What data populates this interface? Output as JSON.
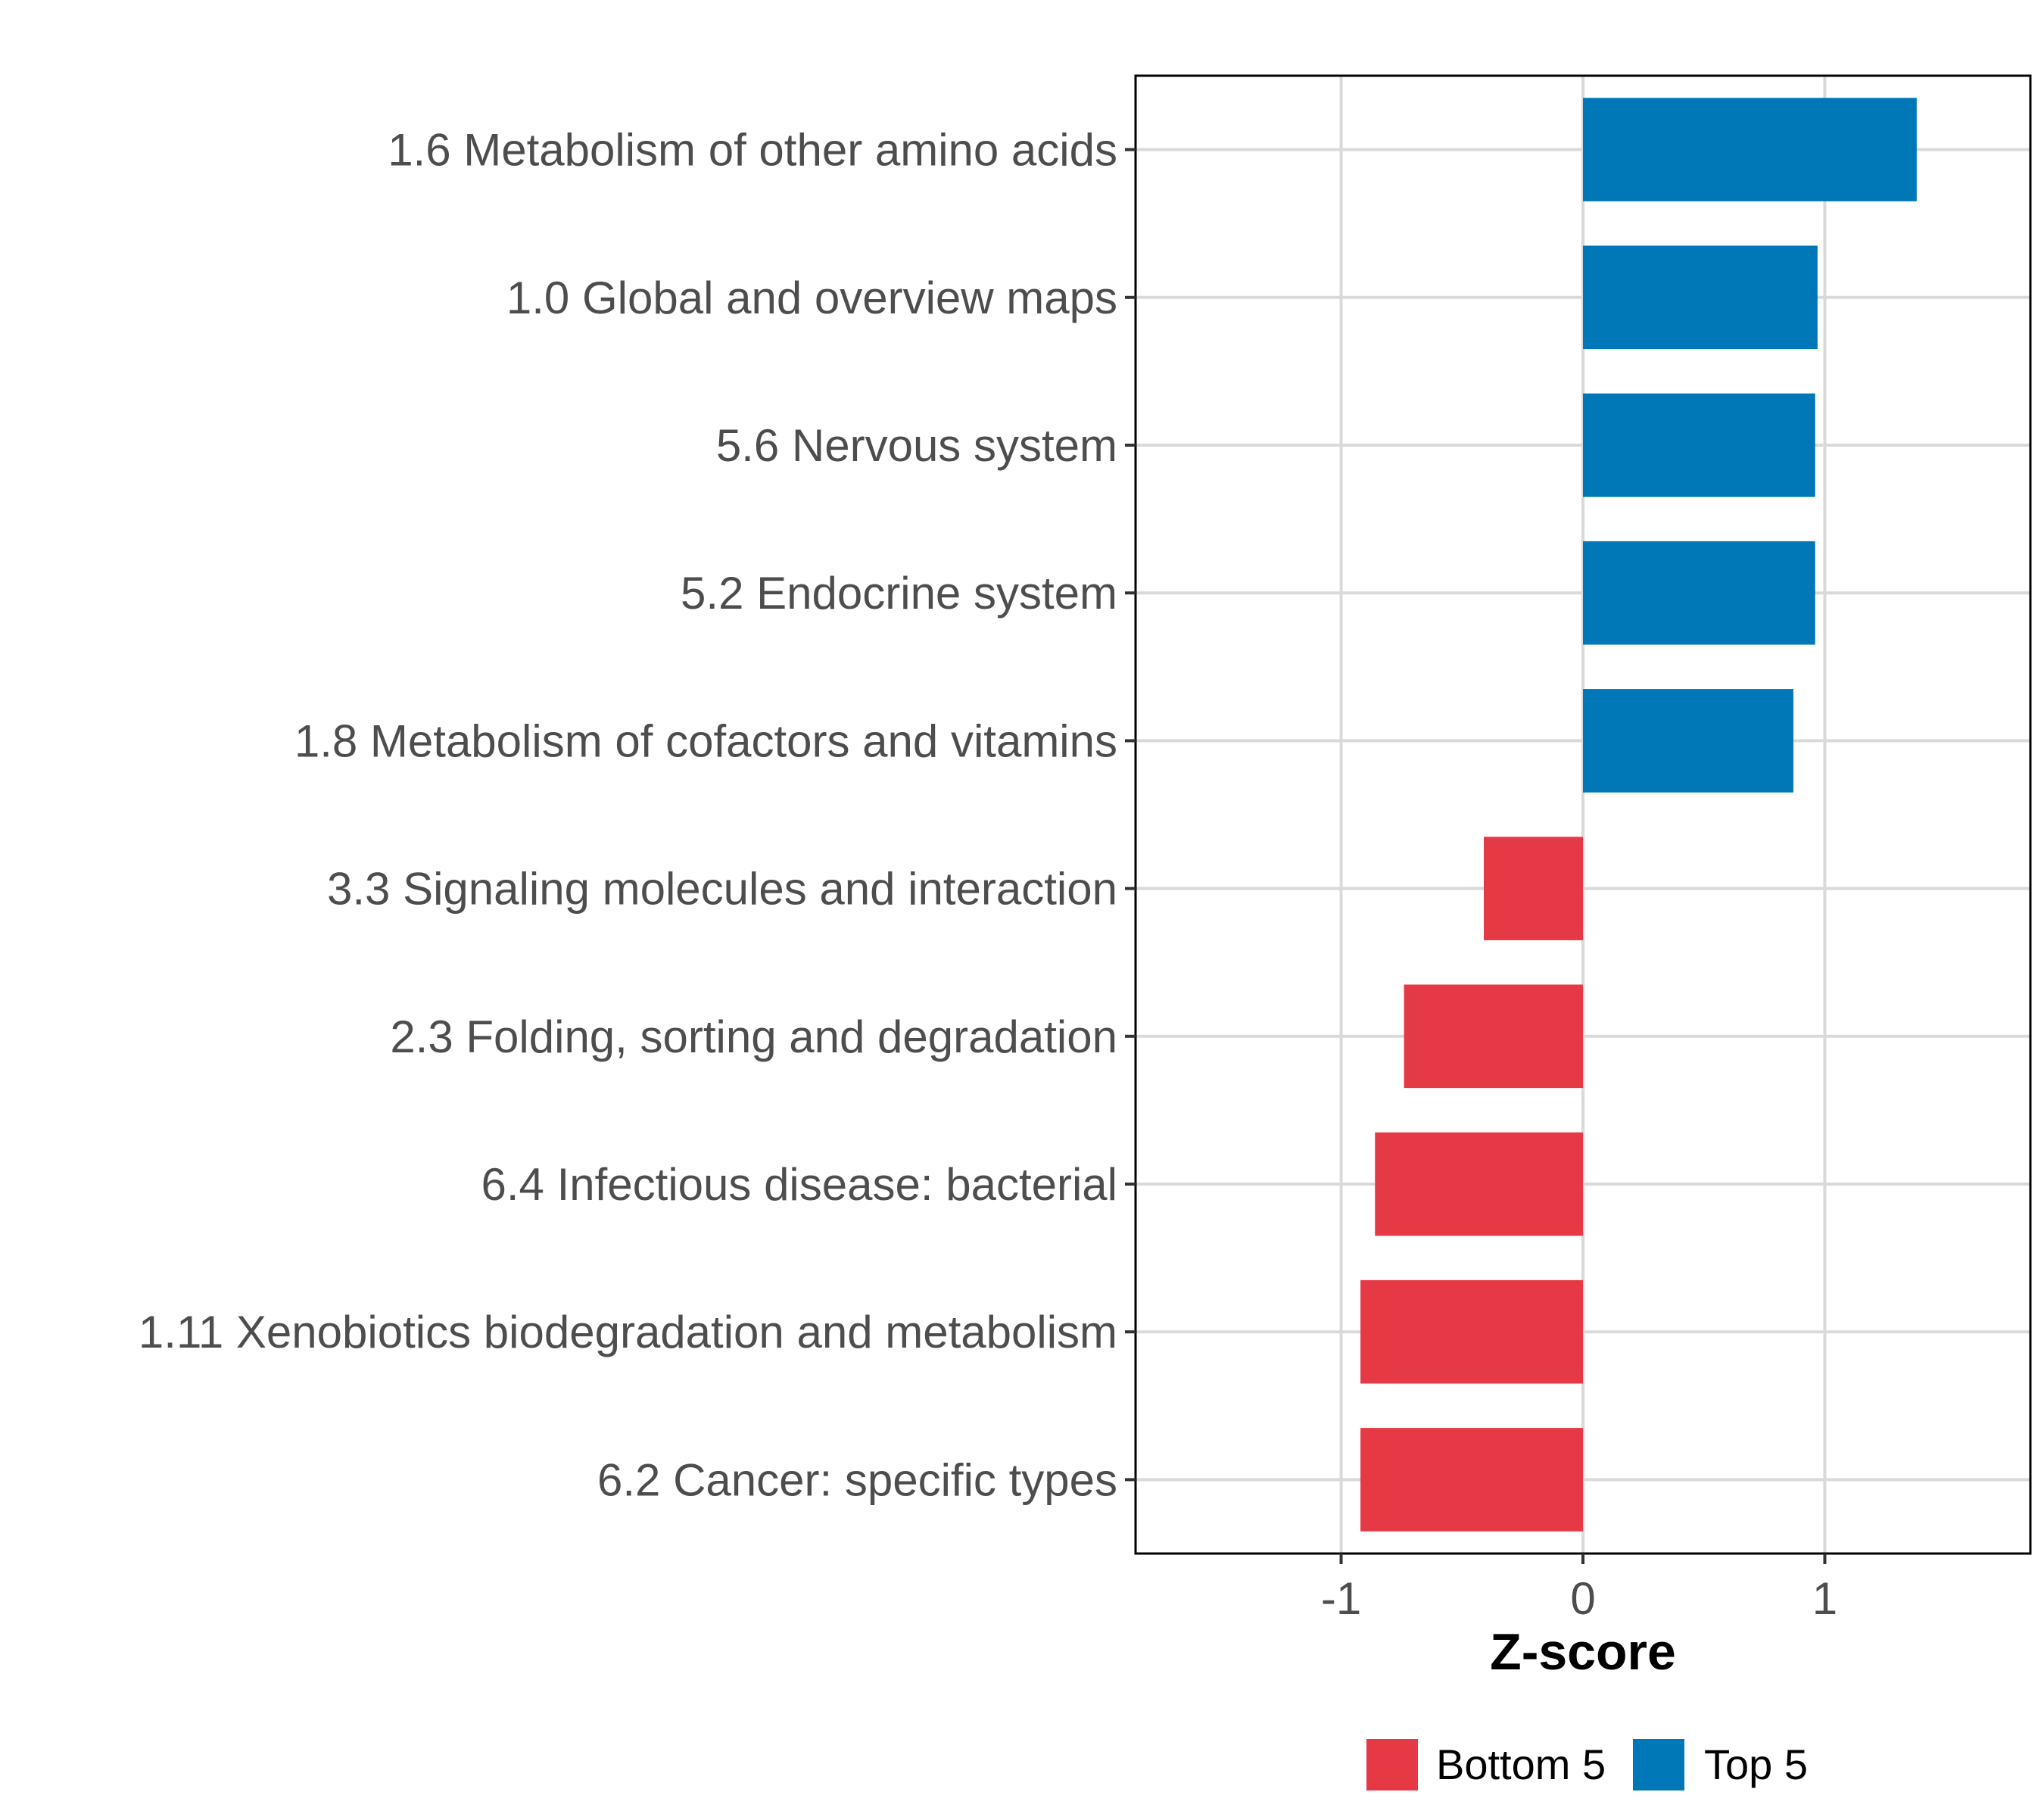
{
  "chart_data": {
    "type": "bar",
    "orientation": "horizontal",
    "title": "",
    "xlabel": "Z-score",
    "ylabel": "",
    "xlim": [
      -1.85,
      1.85
    ],
    "x_ticks": [
      -1,
      0,
      1
    ],
    "x_tick_labels": [
      "-1",
      "0",
      "1"
    ],
    "grid": true,
    "categories": [
      "1.6 Metabolism of other amino acids",
      "1.0 Global and overview maps",
      "5.6 Nervous system",
      "5.2 Endocrine system",
      "1.8 Metabolism of cofactors and vitamins",
      "3.3 Signaling molecules and interaction",
      "2.3 Folding, sorting and degradation",
      "6.4 Infectious disease: bacterial",
      "1.11 Xenobiotics biodegradation and metabolism",
      "6.2 Cancer: specific types"
    ],
    "values": [
      1.38,
      0.97,
      0.96,
      0.96,
      0.87,
      -0.41,
      -0.74,
      -0.86,
      -0.92,
      -0.92
    ],
    "groups": [
      "Top 5",
      "Top 5",
      "Top 5",
      "Top 5",
      "Top 5",
      "Bottom 5",
      "Bottom 5",
      "Bottom 5",
      "Bottom 5",
      "Bottom 5"
    ],
    "legend": {
      "position": "bottom",
      "entries": [
        {
          "label": "Bottom 5",
          "color": "#E63946"
        },
        {
          "label": "Top 5",
          "color": "#0077B6"
        }
      ]
    }
  }
}
